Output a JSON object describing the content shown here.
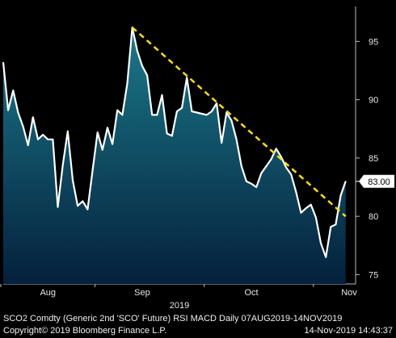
{
  "chart_data": {
    "type": "area",
    "series_name": "SCO2 Comdty RSI",
    "y_ticks": [
      75,
      80,
      85,
      90,
      95
    ],
    "ylim": [
      74.2,
      98
    ],
    "xlim": [
      0,
      71
    ],
    "x_ticks": [
      {
        "label": "Aug",
        "x": 9
      },
      {
        "label": "Sep",
        "x": 28
      },
      {
        "label": "Oct",
        "x": 50
      },
      {
        "label": "Nov",
        "x": 72
      }
    ],
    "year_label": "2019",
    "last_value_label": "83.00",
    "last_value": 83.0,
    "values": [
      93.2,
      89.1,
      90.8,
      88.9,
      87.7,
      86.1,
      88.5,
      86.6,
      87.0,
      86.6,
      86.6,
      80.8,
      84.4,
      87.3,
      83.1,
      80.9,
      81.3,
      80.6,
      83.9,
      87.2,
      85.7,
      87.6,
      86.2,
      89.1,
      88.7,
      91.4,
      96.2,
      94.2,
      92.9,
      92.1,
      88.7,
      88.7,
      90.4,
      87.1,
      86.9,
      89.0,
      89.3,
      91.9,
      89.0,
      88.9,
      88.8,
      88.7,
      89.0,
      89.7,
      86.3,
      88.9,
      88.2,
      86.6,
      84.3,
      83.0,
      82.8,
      82.5,
      83.7,
      84.3,
      84.9,
      85.8,
      85.1,
      84.2,
      83.6,
      82.1,
      80.3,
      80.7,
      81.0,
      79.9,
      77.7,
      76.5,
      79.1,
      79.3,
      81.8,
      83.0
    ],
    "trendline": {
      "from": [
        26,
        96.2
      ],
      "to": [
        69,
        80.0
      ],
      "color": "#ffe000"
    },
    "line_color": "#ffffff",
    "fill_top_color": "#1b7a8a",
    "fill_bottom_color": "#04203c",
    "grid": false
  },
  "footer": {
    "left_line1": "SCO2 Comdty (Generic 2nd 'SCO' Future) RSI MACD  Daily 07AUG2019-14NOV2019",
    "left_line2": "Copyright© 2019 Bloomberg Finance L.P.",
    "right_line2": "14-Nov-2019 14:43:37"
  }
}
